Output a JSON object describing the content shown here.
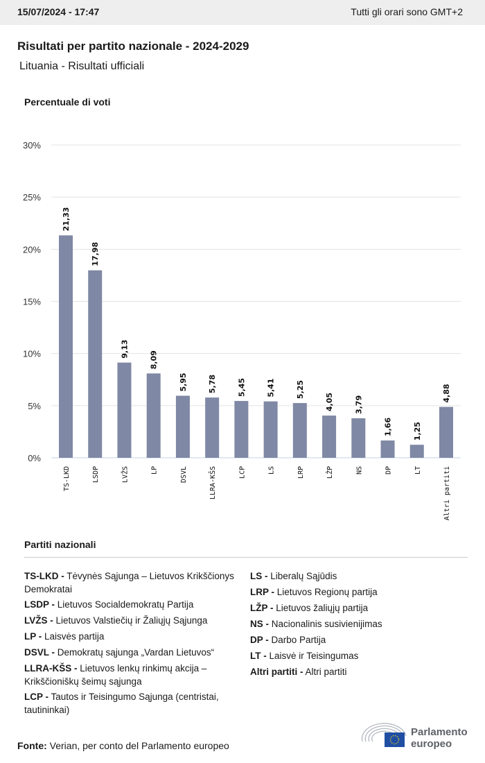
{
  "header": {
    "datetime": "15/07/2024 - 17:47",
    "timezone": "Tutti gli orari sono GMT+2"
  },
  "title": "Risultati per partito nazionale - 2024-2029",
  "subtitle": "Lituania - Risultati ufficiali",
  "chart_data": {
    "type": "bar",
    "ylabel": "Percentuale di voti",
    "ylim": [
      0,
      30
    ],
    "yticks": [
      "0%",
      "5%",
      "10%",
      "15%",
      "20%",
      "25%",
      "30%"
    ],
    "ytick_values": [
      0,
      5,
      10,
      15,
      20,
      25,
      30
    ],
    "grid": true,
    "bar_color": "#7f88a4",
    "categories": [
      "TS-LKD",
      "LSDP",
      "LVŽS",
      "LP",
      "DSVL",
      "LLRA-KŠS",
      "LCP",
      "LS",
      "LRP",
      "LŽP",
      "NS",
      "DP",
      "LT",
      "Altri partiti"
    ],
    "values": [
      21.33,
      17.98,
      9.13,
      8.09,
      5.95,
      5.78,
      5.45,
      5.41,
      5.25,
      4.05,
      3.79,
      1.66,
      1.25,
      4.88
    ],
    "labels": [
      "21,33",
      "17,98",
      "9,13",
      "8,09",
      "5,95",
      "5,78",
      "5,45",
      "5,41",
      "5,25",
      "4,05",
      "3,79",
      "1,66",
      "1,25",
      "4,88"
    ]
  },
  "legend": {
    "title": "Partiti nazionali",
    "left": [
      {
        "abbr": "TS-LKD -",
        "name": "Tėvynės Sąjunga – Lietuvos Krikščionys Demokratai"
      },
      {
        "abbr": "LSDP -",
        "name": "Lietuvos Socialdemokratų Partija"
      },
      {
        "abbr": "LVŽS -",
        "name": "Lietuvos Valstiečių ir Žaliųjų Sąjunga"
      },
      {
        "abbr": "LP -",
        "name": "Laisvės partija"
      },
      {
        "abbr": "DSVL -",
        "name": "Demokratų sąjunga „Vardan Lietuvos“"
      },
      {
        "abbr": "LLRA-KŠS -",
        "name": "Lietuvos lenkų rinkimų akcija – Krikščioniškų šeimų sąjunga"
      },
      {
        "abbr": "LCP -",
        "name": "Tautos ir Teisingumo Sąjunga (centristai, tautininkai)"
      }
    ],
    "right": [
      {
        "abbr": "LS -",
        "name": "Liberalų Sąjūdis"
      },
      {
        "abbr": "LRP -",
        "name": "Lietuvos Regionų partija"
      },
      {
        "abbr": "LŽP -",
        "name": "Lietuvos žaliųjų partija"
      },
      {
        "abbr": "NS -",
        "name": "Nacionalinis susivienijimas"
      },
      {
        "abbr": "DP -",
        "name": "Darbo Partija"
      },
      {
        "abbr": "LT -",
        "name": "Laisvė ir Teisingumas"
      },
      {
        "abbr": "Altri partiti -",
        "name": "Altri partiti"
      }
    ]
  },
  "footer": {
    "source_label": "Fonte:",
    "source": "Verian, per conto del Parlamento europeo",
    "logo_text_1": "Parlamento",
    "logo_text_2": "europeo"
  }
}
